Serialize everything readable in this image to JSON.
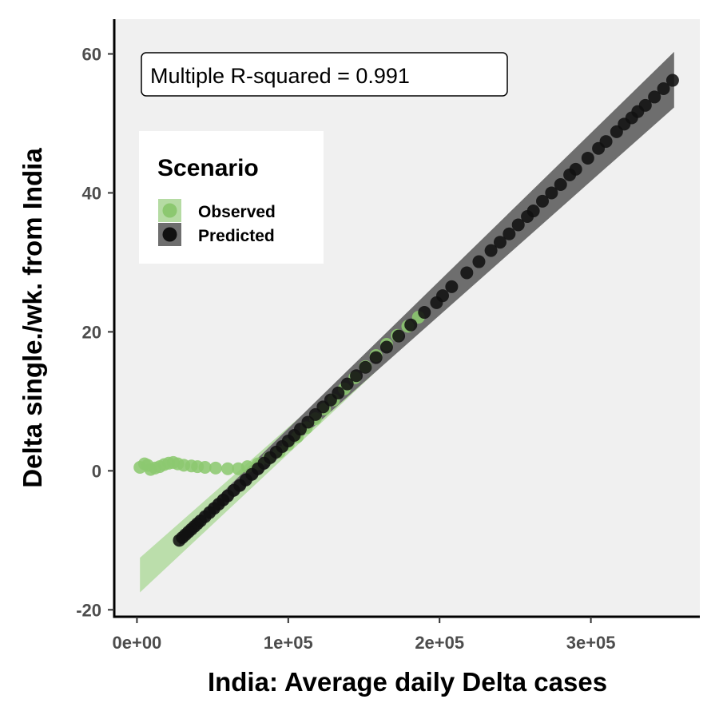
{
  "chart_data": {
    "type": "scatter",
    "xlabel": "India: Average daily Delta cases",
    "ylabel": "Delta single./wk. from India",
    "xlim": [
      -15000,
      372000
    ],
    "ylim": [
      -21,
      65
    ],
    "x_ticks": [
      0,
      100000,
      200000,
      300000
    ],
    "x_tick_labels": [
      "0e+00",
      "1e+05",
      "2e+05",
      "3e+05"
    ],
    "y_ticks": [
      -20,
      0,
      20,
      40,
      60
    ],
    "y_tick_labels": [
      "-20",
      "0",
      "20",
      "40",
      "60"
    ],
    "annotation": "Multiple R-squared = 0.991",
    "legend": {
      "title": "Scenario",
      "position": "top-left",
      "entries": [
        "Observed",
        "Predicted"
      ]
    },
    "panel_background": "#f0f0f0",
    "series": [
      {
        "name": "Observed",
        "color": "#8cc870",
        "band_color": "#b5dba3",
        "confidence_band": {
          "x": [
            2000,
            190000
          ],
          "lower": [
            -17.5,
            20.8
          ],
          "upper": [
            -12.5,
            23.5
          ]
        },
        "points": [
          [
            2000,
            0.5
          ],
          [
            5000,
            1.0
          ],
          [
            7000,
            0.8
          ],
          [
            9000,
            0.2
          ],
          [
            12000,
            0.4
          ],
          [
            15000,
            0.6
          ],
          [
            18000,
            0.9
          ],
          [
            21000,
            1.1
          ],
          [
            24000,
            1.2
          ],
          [
            27000,
            1.0
          ],
          [
            31000,
            0.8
          ],
          [
            36000,
            0.7
          ],
          [
            40000,
            0.6
          ],
          [
            45000,
            0.5
          ],
          [
            52000,
            0.4
          ],
          [
            60000,
            0.3
          ],
          [
            67000,
            0.3
          ],
          [
            73000,
            0.6
          ],
          [
            80000,
            1.0
          ],
          [
            87000,
            1.8
          ],
          [
            94000,
            2.7
          ],
          [
            100000,
            3.8
          ],
          [
            106000,
            4.9
          ],
          [
            112000,
            6.2
          ],
          [
            118000,
            7.5
          ],
          [
            124000,
            8.9
          ],
          [
            130000,
            10.2
          ],
          [
            137000,
            11.8
          ],
          [
            144000,
            13.4
          ],
          [
            151000,
            15.0
          ],
          [
            158000,
            16.6
          ],
          [
            165000,
            18.2
          ],
          [
            172000,
            19.5
          ],
          [
            179000,
            20.8
          ],
          [
            186000,
            22.1
          ]
        ]
      },
      {
        "name": "Predicted",
        "color": "#111111",
        "band_color": "#6e6e6e",
        "confidence_band": {
          "x": [
            28000,
            355000
          ],
          "lower": [
            -10.8,
            52.3
          ],
          "upper": [
            -9.2,
            60.3
          ]
        },
        "points": [
          [
            28000,
            -10.0
          ],
          [
            30000,
            -9.6
          ],
          [
            32000,
            -9.2
          ],
          [
            34000,
            -8.8
          ],
          [
            36000,
            -8.4
          ],
          [
            38000,
            -8.0
          ],
          [
            40000,
            -7.6
          ],
          [
            42000,
            -7.2
          ],
          [
            45000,
            -6.6
          ],
          [
            48000,
            -6.0
          ],
          [
            51000,
            -5.4
          ],
          [
            54000,
            -4.8
          ],
          [
            57000,
            -4.2
          ],
          [
            60000,
            -3.6
          ],
          [
            64000,
            -2.8
          ],
          [
            68000,
            -2.1
          ],
          [
            72000,
            -1.3
          ],
          [
            76000,
            -0.5
          ],
          [
            80000,
            0.3
          ],
          [
            84000,
            1.1
          ],
          [
            88000,
            1.9
          ],
          [
            92000,
            2.7
          ],
          [
            96000,
            3.5
          ],
          [
            100000,
            4.3
          ],
          [
            104000,
            5.1
          ],
          [
            108000,
            6.0
          ],
          [
            113000,
            7.0
          ],
          [
            118000,
            8.1
          ],
          [
            123000,
            9.2
          ],
          [
            128000,
            10.2
          ],
          [
            133000,
            11.2
          ],
          [
            139000,
            12.5
          ],
          [
            145000,
            13.7
          ],
          [
            151000,
            14.9
          ],
          [
            158000,
            16.3
          ],
          [
            165000,
            17.8
          ],
          [
            173000,
            19.4
          ],
          [
            181000,
            21.0
          ],
          [
            190000,
            22.8
          ],
          [
            198000,
            24.2
          ],
          [
            202000,
            25.2
          ],
          [
            208000,
            26.5
          ],
          [
            218000,
            28.5
          ],
          [
            226000,
            30.1
          ],
          [
            234000,
            31.7
          ],
          [
            240000,
            32.9
          ],
          [
            246000,
            34.1
          ],
          [
            252000,
            35.4
          ],
          [
            258000,
            36.6
          ],
          [
            262000,
            37.4
          ],
          [
            268000,
            38.8
          ],
          [
            274000,
            40.0
          ],
          [
            280000,
            41.2
          ],
          [
            286000,
            42.6
          ],
          [
            290000,
            43.4
          ],
          [
            298000,
            45.0
          ],
          [
            305000,
            46.4
          ],
          [
            310000,
            47.4
          ],
          [
            317000,
            48.8
          ],
          [
            322000,
            49.9
          ],
          [
            327000,
            50.8
          ],
          [
            331000,
            51.7
          ],
          [
            336000,
            52.6
          ],
          [
            342000,
            53.8
          ],
          [
            348000,
            55.0
          ],
          [
            354000,
            56.2
          ]
        ]
      }
    ]
  }
}
